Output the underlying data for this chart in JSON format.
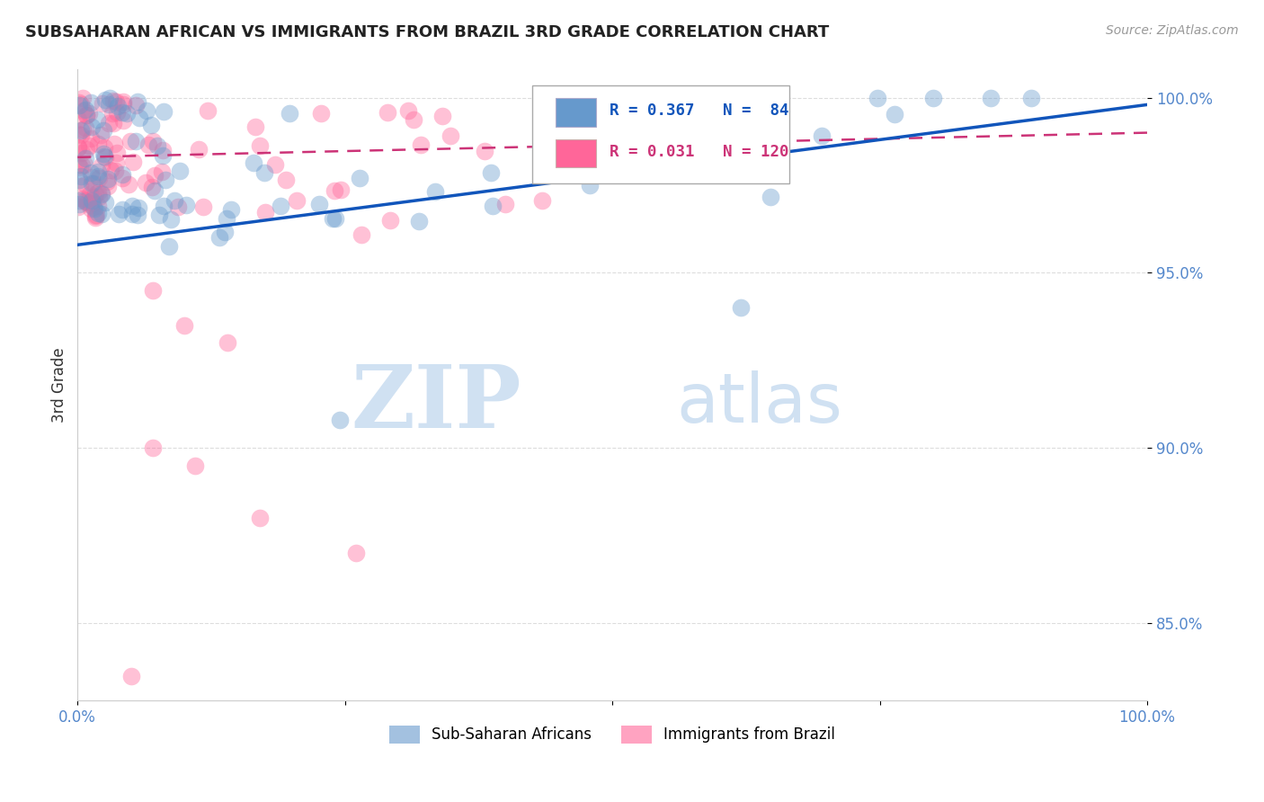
{
  "title": "SUBSAHARAN AFRICAN VS IMMIGRANTS FROM BRAZIL 3RD GRADE CORRELATION CHART",
  "source_text": "Source: ZipAtlas.com",
  "ylabel": "3rd Grade",
  "xlabel": "",
  "xlim": [
    0.0,
    1.0
  ],
  "ylim": [
    0.828,
    1.008
  ],
  "yticks": [
    0.85,
    0.9,
    0.95,
    1.0
  ],
  "ytick_labels": [
    "85.0%",
    "90.0%",
    "95.0%",
    "100.0%"
  ],
  "xticks": [
    0.0,
    0.25,
    0.5,
    0.75,
    1.0
  ],
  "xtick_labels": [
    "0.0%",
    "",
    "",
    "",
    "100.0%"
  ],
  "blue_color": "#6699CC",
  "pink_color": "#FF6699",
  "blue_line_color": "#1155BB",
  "pink_line_color": "#CC3377",
  "R_blue": 0.367,
  "N_blue": 84,
  "R_pink": 0.031,
  "N_pink": 120,
  "legend_label_blue": "Sub-Saharan Africans",
  "legend_label_pink": "Immigrants from Brazil",
  "watermark_zip": "ZIP",
  "watermark_atlas": "atlas",
  "tick_color": "#5588CC",
  "ylabel_color": "#333333",
  "title_color": "#222222",
  "source_color": "#999999",
  "grid_color": "#DDDDDD",
  "blue_line_start_y": 0.958,
  "blue_line_end_y": 0.998,
  "pink_line_start_y": 0.983,
  "pink_line_end_y": 0.99
}
